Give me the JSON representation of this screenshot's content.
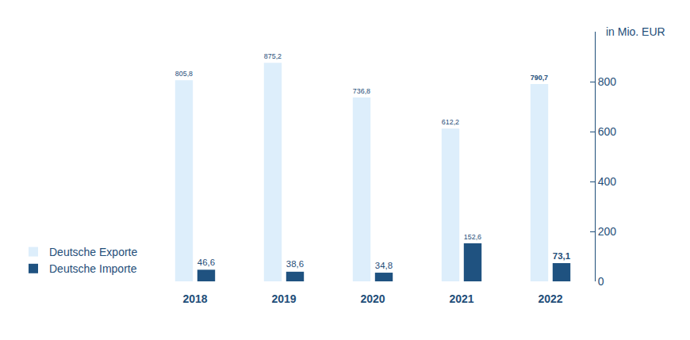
{
  "chart_data": {
    "type": "bar",
    "ylabel": "in Mio. EUR",
    "categories": [
      "2018",
      "2019",
      "2020",
      "2021",
      "2022"
    ],
    "series": [
      {
        "name": "Deutsche Exporte",
        "color": "#ddeefb",
        "values": [
          805.8,
          875.2,
          736.8,
          612.2,
          790.7
        ],
        "value_labels": [
          "805,8",
          "875,2",
          "736,8",
          "612,2",
          "790,7"
        ]
      },
      {
        "name": "Deutsche Importe",
        "color": "#1f5280",
        "values": [
          46.6,
          38.6,
          34.8,
          152.6,
          73.1
        ],
        "value_labels": [
          "46,6",
          "38,6",
          "34,8",
          "152,6",
          "73,1"
        ]
      }
    ],
    "ylim": [
      0,
      1000
    ],
    "yticks": [
      0,
      200,
      400,
      600,
      800
    ],
    "grid": false,
    "legend": "lower left",
    "data_labels": true
  }
}
